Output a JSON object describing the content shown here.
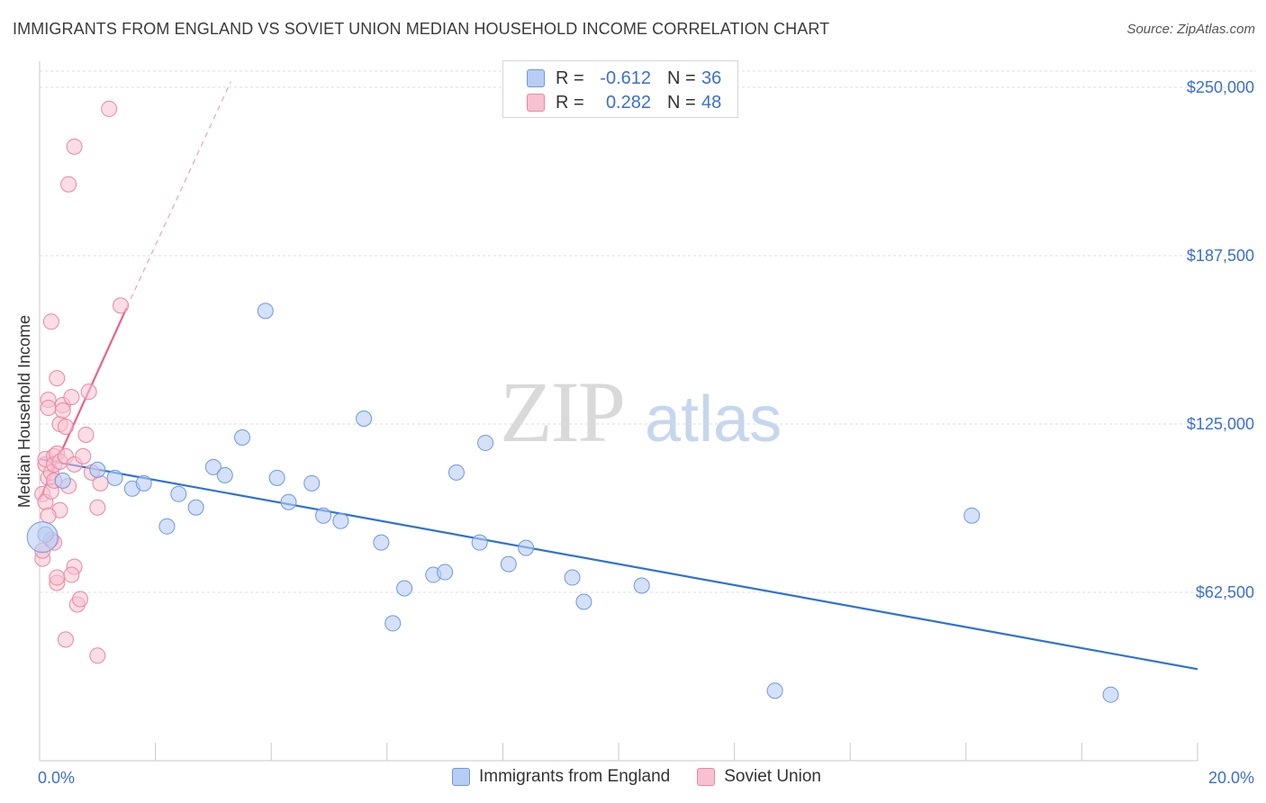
{
  "header": {
    "title": "IMMIGRANTS FROM ENGLAND VS SOVIET UNION MEDIAN HOUSEHOLD INCOME CORRELATION CHART",
    "source": "Source: ZipAtlas.com"
  },
  "watermark": {
    "zip": "ZIP",
    "atlas": "atlas"
  },
  "legend": {
    "rows": [
      {
        "r_label": "R =",
        "r_value": "-0.612",
        "n_label": "N =",
        "n_value": "36"
      },
      {
        "r_label": "R =",
        "r_value": "0.282",
        "n_label": "N =",
        "n_value": "48"
      }
    ]
  },
  "bottom_legend": {
    "england": "Immigrants from England",
    "soviet": "Soviet Union"
  },
  "colors": {
    "england_fill": "#b7cdf3",
    "england_stroke": "#6f98e0",
    "england_line": "#2f72d6",
    "soviet_fill": "#f7c1d1",
    "soviet_stroke": "#e9879f",
    "soviet_line": "#e8628c",
    "tick_text": "#3b6fd1",
    "grid": "#dcdcdc"
  },
  "chart_data": {
    "type": "scatter",
    "ylabel": "Median Household Income",
    "xlabel": "",
    "xlim": [
      0,
      20
    ],
    "ylim": [
      0,
      260000
    ],
    "x_tick_labels": [
      "0.0%",
      "20.0%"
    ],
    "y_ticks": [
      62500,
      125000,
      187500,
      250000
    ],
    "y_tick_labels": [
      "$62,500",
      "$125,000",
      "$187,500",
      "$250,000"
    ],
    "grid": true,
    "series": [
      {
        "name": "Immigrants from England",
        "r": -0.612,
        "n": 36,
        "trend": [
          [
            0,
            112000
          ],
          [
            20,
            34000
          ]
        ],
        "points": [
          [
            0.1,
            84000
          ],
          [
            0.4,
            104000
          ],
          [
            1.0,
            108000
          ],
          [
            1.3,
            105000
          ],
          [
            1.6,
            101000
          ],
          [
            1.8,
            103000
          ],
          [
            2.2,
            87000
          ],
          [
            2.4,
            99000
          ],
          [
            2.7,
            94000
          ],
          [
            3.0,
            109000
          ],
          [
            3.2,
            106000
          ],
          [
            3.5,
            120000
          ],
          [
            3.9,
            167000
          ],
          [
            4.1,
            105000
          ],
          [
            4.3,
            96000
          ],
          [
            4.7,
            103000
          ],
          [
            4.9,
            91000
          ],
          [
            5.2,
            89000
          ],
          [
            5.6,
            127000
          ],
          [
            5.9,
            81000
          ],
          [
            6.1,
            51000
          ],
          [
            6.3,
            64000
          ],
          [
            6.8,
            69000
          ],
          [
            7.0,
            70000
          ],
          [
            7.2,
            107000
          ],
          [
            7.6,
            81000
          ],
          [
            7.7,
            118000
          ],
          [
            8.1,
            73000
          ],
          [
            8.4,
            79000
          ],
          [
            9.2,
            68000
          ],
          [
            9.4,
            59000
          ],
          [
            10.4,
            65000
          ],
          [
            12.7,
            26000
          ],
          [
            16.1,
            91000
          ],
          [
            18.5,
            24500
          ],
          [
            0.05,
            83000
          ]
        ]
      },
      {
        "name": "Soviet Union",
        "r": 0.282,
        "n": 48,
        "trend": [
          [
            0,
            97000
          ],
          [
            1.5,
            168000
          ]
        ],
        "trend_dashed": [
          [
            1.5,
            168000
          ],
          [
            3.3,
            252000
          ]
        ],
        "points": [
          [
            0.05,
            99000
          ],
          [
            0.05,
            75000
          ],
          [
            0.05,
            78000
          ],
          [
            0.1,
            96000
          ],
          [
            0.1,
            110000
          ],
          [
            0.15,
            134000
          ],
          [
            0.15,
            131000
          ],
          [
            0.1,
            112000
          ],
          [
            0.15,
            105000
          ],
          [
            0.2,
            107000
          ],
          [
            0.2,
            100000
          ],
          [
            0.2,
            163000
          ],
          [
            0.2,
            82000
          ],
          [
            0.25,
            81000
          ],
          [
            0.25,
            113000
          ],
          [
            0.25,
            110000
          ],
          [
            0.3,
            142000
          ],
          [
            0.3,
            114000
          ],
          [
            0.3,
            66000
          ],
          [
            0.3,
            68000
          ],
          [
            0.35,
            93000
          ],
          [
            0.35,
            125000
          ],
          [
            0.35,
            111000
          ],
          [
            0.4,
            132000
          ],
          [
            0.4,
            130000
          ],
          [
            0.45,
            124000
          ],
          [
            0.45,
            113000
          ],
          [
            0.5,
            102000
          ],
          [
            0.5,
            214000
          ],
          [
            0.55,
            135000
          ],
          [
            0.6,
            110000
          ],
          [
            0.6,
            72000
          ],
          [
            0.6,
            228000
          ],
          [
            0.65,
            58000
          ],
          [
            0.7,
            60000
          ],
          [
            0.75,
            113000
          ],
          [
            0.8,
            121000
          ],
          [
            0.85,
            137000
          ],
          [
            0.9,
            107000
          ],
          [
            1.0,
            39000
          ],
          [
            1.05,
            103000
          ],
          [
            1.0,
            94000
          ],
          [
            1.2,
            242000
          ],
          [
            1.4,
            169000
          ],
          [
            0.55,
            69000
          ],
          [
            0.45,
            45000
          ],
          [
            0.15,
            91000
          ],
          [
            0.25,
            104000
          ]
        ]
      }
    ]
  }
}
